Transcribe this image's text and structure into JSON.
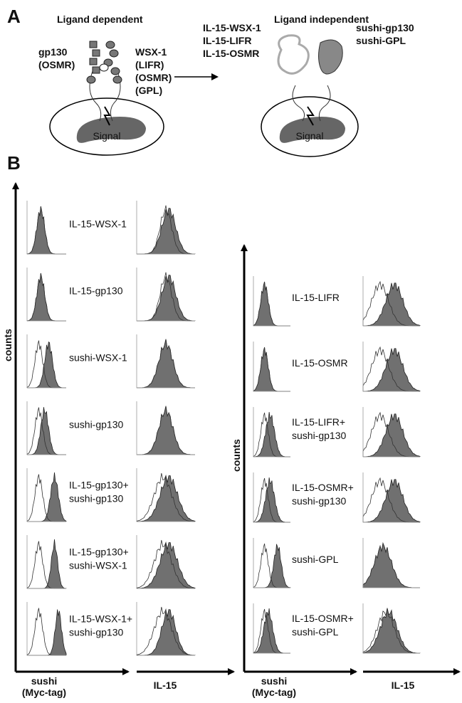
{
  "panel_a": {
    "label": "A",
    "left": {
      "title": "Ligand dependent",
      "left_labels": [
        "gp130",
        "(OSMR)"
      ],
      "right_labels": [
        "WSX-1",
        "(LIFR)",
        "(OSMR)",
        "(GPL)"
      ],
      "signal": "Signal"
    },
    "right": {
      "title": "Ligand independent",
      "left_labels": [
        "IL-15-WSX-1",
        "IL-15-LIFR",
        "IL-15-OSMR"
      ],
      "right_labels": [
        "sushi-gp130",
        "sushi-GPL"
      ],
      "signal": "Signal"
    }
  },
  "panel_b": {
    "label": "B",
    "left": {
      "y_label": "counts",
      "x_label_1": [
        "sushi",
        "(Myc-tag)"
      ],
      "x_label_2": "IL-15",
      "rows": [
        [
          "IL-15-WSX-1"
        ],
        [
          "IL-15-gp130"
        ],
        [
          "sushi-WSX-1"
        ],
        [
          "sushi-gp130"
        ],
        [
          "IL-15-gp130+",
          "sushi-gp130"
        ],
        [
          "IL-15-gp130+",
          "sushi-WSX-1"
        ],
        [
          "IL-15-WSX-1+",
          "sushi-gp130"
        ]
      ]
    },
    "right": {
      "y_label": "counts",
      "x_label_1": [
        "sushi",
        "(Myc-tag)"
      ],
      "x_label_2": "IL-15",
      "rows": [
        [
          "IL-15-LIFR"
        ],
        [
          "IL-15-OSMR"
        ],
        [
          "IL-15-LIFR+",
          "sushi-gp130"
        ],
        [
          "IL-15-OSMR+",
          "sushi-gp130"
        ],
        [
          "sushi-GPL"
        ],
        [
          "IL-15-OSMR+",
          "sushi-GPL"
        ]
      ]
    }
  }
}
